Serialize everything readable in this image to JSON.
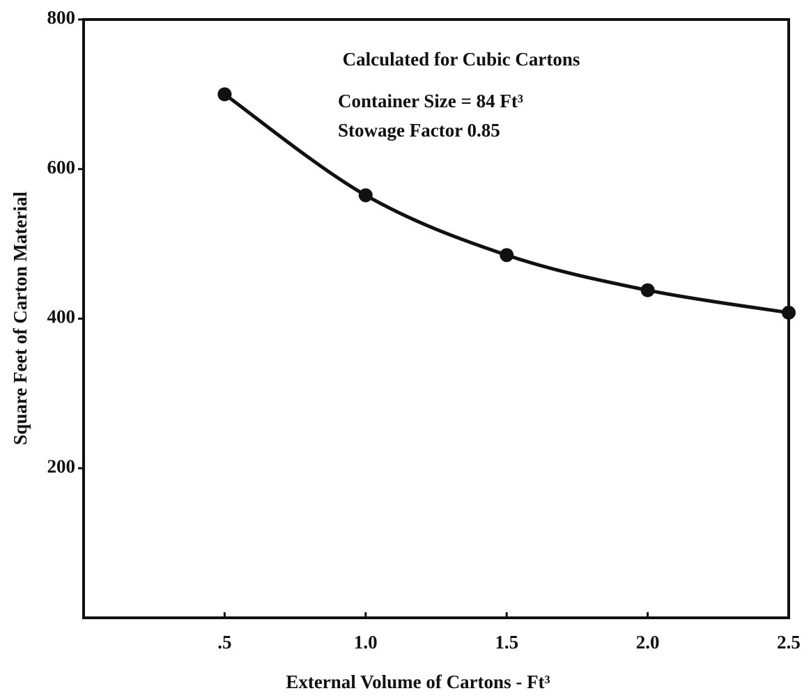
{
  "chart_data": {
    "type": "line",
    "annotations": [
      "Calculated for Cubic Cartons",
      "Container Size = 84 Ft³",
      "Stowage Factor 0.85"
    ],
    "x_label": "External Volume of Cartons - Ft³",
    "y_label": "Square Feet of Carton Material",
    "x": [
      0.5,
      1.0,
      1.5,
      2.0,
      2.5
    ],
    "series": [
      {
        "color": "#111111",
        "values": [
          700,
          565,
          485,
          438,
          408
        ]
      }
    ],
    "xlim": [
      0,
      2.5
    ],
    "ylim": [
      0,
      800
    ],
    "xticks": [
      {
        "value": 0.5,
        "label": ".5"
      },
      {
        "value": 1.0,
        "label": "1.0"
      },
      {
        "value": 1.5,
        "label": "1.5"
      },
      {
        "value": 2.0,
        "label": "2.0"
      },
      {
        "value": 2.5,
        "label": "2.5"
      }
    ],
    "yticks": [
      200,
      400,
      600,
      800
    ],
    "grid": false,
    "markers": true
  }
}
